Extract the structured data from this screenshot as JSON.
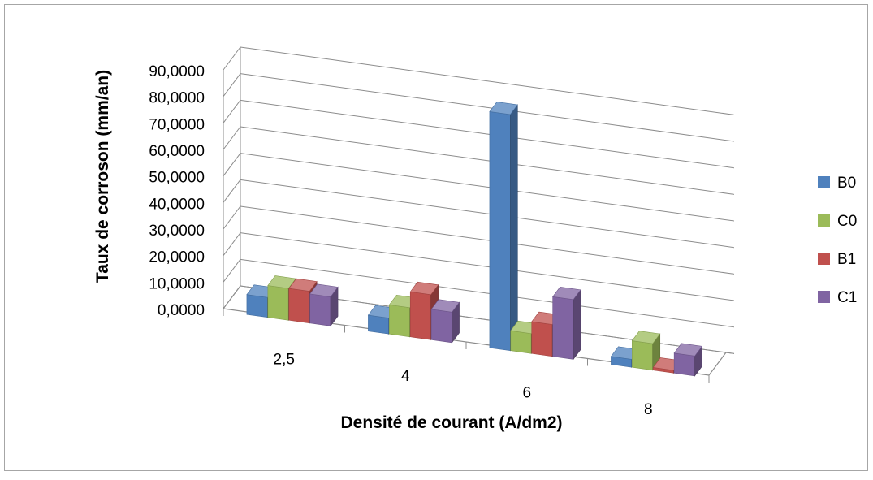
{
  "chart_data": {
    "type": "bar",
    "title": "",
    "xlabel": "Densité de courant (A/dm2)",
    "ylabel": "Taux de corroson  (mm/an)",
    "categories": [
      "2,5",
      "4",
      "6",
      "8"
    ],
    "y_tick_labels": [
      "0,0000",
      "10,0000",
      "20,0000",
      "30,0000",
      "40,0000",
      "50,0000",
      "60,0000",
      "70,0000",
      "80,0000",
      "90,0000"
    ],
    "ylim": [
      0,
      90
    ],
    "grid": true,
    "legend_position": "right",
    "series": [
      {
        "name": "B0",
        "color": "#4F81BD",
        "values": [
          7.5,
          6.0,
          89.0,
          3.0
        ]
      },
      {
        "name": "C0",
        "color": "#9BBB59",
        "values": [
          12.0,
          11.0,
          7.5,
          10.0
        ]
      },
      {
        "name": "B1",
        "color": "#C0504D",
        "values": [
          12.0,
          17.0,
          12.0,
          1.0
        ]
      },
      {
        "name": "C1",
        "color": "#8064A2",
        "values": [
          11.0,
          11.5,
          22.5,
          7.5
        ]
      }
    ]
  }
}
